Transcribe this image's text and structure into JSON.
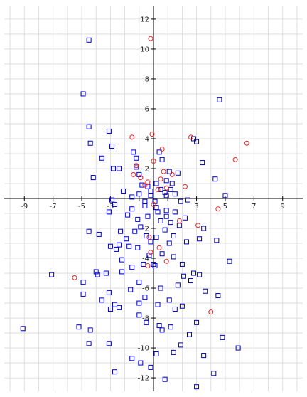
{
  "chart_data": {
    "type": "scatter",
    "title": "",
    "xlabel": "",
    "ylabel": "",
    "xlim": [
      -10.4,
      10.4
    ],
    "ylim": [
      -12.9,
      12.9
    ],
    "grid": true,
    "x_ticks": [
      -9,
      -7,
      -5,
      -3,
      -1,
      1,
      3,
      5,
      7,
      9
    ],
    "x_tick_labels": [
      "-9",
      "-7",
      "-5",
      "-3",
      "",
      "",
      "3",
      "5",
      "7",
      "9"
    ],
    "y_ticks": [
      -12,
      -10,
      -8,
      -6,
      -4,
      -2,
      2,
      4,
      6,
      8,
      10,
      12
    ],
    "y_tick_labels": [
      "-12",
      "-10",
      "-8",
      "-6",
      "-4",
      "-2",
      "2",
      "4",
      "6",
      "8",
      "10",
      "12"
    ],
    "colors": {
      "squares": "#0000cc",
      "circles": "#ee2222",
      "grid": "#d9d9d9",
      "axis": "#000000"
    },
    "series": [
      {
        "marker": "square",
        "color": "#0000cc",
        "points": [
          [
            -4.5,
            10.6
          ],
          [
            -4.9,
            7.0
          ],
          [
            4.6,
            6.6
          ],
          [
            -4.5,
            4.8
          ],
          [
            -3.1,
            4.5
          ],
          [
            -4.4,
            3.7
          ],
          [
            -2.9,
            3.5
          ],
          [
            -1.4,
            3.1
          ],
          [
            0.4,
            3.1
          ],
          [
            2.8,
            4.0
          ],
          [
            3.0,
            3.8
          ],
          [
            -3.6,
            2.7
          ],
          [
            -1.2,
            2.7
          ],
          [
            0.6,
            2.6
          ],
          [
            3.4,
            2.4
          ],
          [
            -2.8,
            2.0
          ],
          [
            -2.4,
            2.0
          ],
          [
            -1.2,
            2.1
          ],
          [
            1.1,
            1.8
          ],
          [
            1.7,
            1.7
          ],
          [
            -4.2,
            1.4
          ],
          [
            4.3,
            1.3
          ],
          [
            -1.0,
            1.6
          ],
          [
            0.2,
            1.0
          ],
          [
            -0.4,
            0.8
          ],
          [
            0.8,
            0.4
          ],
          [
            1.2,
            0.6
          ],
          [
            -2.1,
            0.5
          ],
          [
            -1.0,
            0.3
          ],
          [
            -0.2,
            0.2
          ],
          [
            0.9,
            0.2
          ],
          [
            1.5,
            0.3
          ],
          [
            5.0,
            0.2
          ],
          [
            -2.9,
            -0.1
          ],
          [
            -2.7,
            -0.4
          ],
          [
            -1.5,
            -0.7
          ],
          [
            -0.6,
            -0.5
          ],
          [
            0.2,
            -0.6
          ],
          [
            0.9,
            -0.8
          ],
          [
            1.9,
            -0.2
          ],
          [
            2.4,
            -0.1
          ],
          [
            -3.1,
            -0.9
          ],
          [
            -1.8,
            -1.1
          ],
          [
            -1.1,
            -1.4
          ],
          [
            -0.4,
            -1.2
          ],
          [
            0.5,
            -1.5
          ],
          [
            1.2,
            -1.6
          ],
          [
            1.8,
            -1.8
          ],
          [
            3.5,
            -2.0
          ],
          [
            -4.5,
            -2.2
          ],
          [
            -3.8,
            -2.4
          ],
          [
            -2.3,
            -2.2
          ],
          [
            -1.3,
            -2.2
          ],
          [
            -0.5,
            -2.5
          ],
          [
            0.2,
            -2.6
          ],
          [
            1.4,
            -2.5
          ],
          [
            2.3,
            -2.9
          ],
          [
            3.2,
            -2.7
          ],
          [
            4.4,
            -2.8
          ],
          [
            -3.0,
            -3.2
          ],
          [
            -2.4,
            -3.1
          ],
          [
            -1.7,
            -3.2
          ],
          [
            -1.1,
            -3.3
          ],
          [
            -0.3,
            -3.8
          ],
          [
            0.6,
            -3.7
          ],
          [
            1.4,
            -3.9
          ],
          [
            2.0,
            -4.4
          ],
          [
            5.3,
            -4.2
          ],
          [
            -2.2,
            -4.1
          ],
          [
            -1.5,
            -4.6
          ],
          [
            -0.7,
            -4.4
          ],
          [
            0.1,
            -4.5
          ],
          [
            -4.9,
            -5.6
          ],
          [
            -3.9,
            -5.1
          ],
          [
            -3.3,
            -5.0
          ],
          [
            -2.2,
            -4.9
          ],
          [
            -1.0,
            -5.6
          ],
          [
            0.0,
            -4.4
          ],
          [
            2.1,
            -5.2
          ],
          [
            2.6,
            -5.5
          ],
          [
            2.8,
            -5.0
          ],
          [
            3.2,
            -5.1
          ],
          [
            3.6,
            -6.2
          ],
          [
            -4.9,
            -6.4
          ],
          [
            -3.1,
            -6.3
          ],
          [
            -1.6,
            -6.1
          ],
          [
            -0.6,
            -6.6
          ],
          [
            0.5,
            -6.0
          ],
          [
            1.1,
            -6.8
          ],
          [
            1.7,
            -5.8
          ],
          [
            2.0,
            -7.2
          ],
          [
            4.5,
            -6.5
          ],
          [
            -3.6,
            -6.8
          ],
          [
            -2.7,
            -7.1
          ],
          [
            -1.0,
            -7.0
          ],
          [
            0.3,
            -7.1
          ],
          [
            1.5,
            -7.4
          ],
          [
            -3.0,
            -7.4
          ],
          [
            -2.4,
            -7.3
          ],
          [
            -1.0,
            -7.8
          ],
          [
            0.4,
            -8.5
          ],
          [
            1.2,
            -8.6
          ],
          [
            -5.2,
            -8.6
          ],
          [
            -4.4,
            -8.8
          ],
          [
            -0.5,
            -8.3
          ],
          [
            0.6,
            -8.8
          ],
          [
            2.5,
            -9.1
          ],
          [
            3.0,
            -8.3
          ],
          [
            -9.1,
            -8.7
          ],
          [
            -4.5,
            -9.7
          ],
          [
            -3.1,
            -9.7
          ],
          [
            1.9,
            -9.8
          ],
          [
            4.8,
            -9.3
          ],
          [
            5.9,
            -10.0
          ],
          [
            -1.5,
            -10.7
          ],
          [
            0.2,
            -10.4
          ],
          [
            1.4,
            -10.3
          ],
          [
            3.5,
            -10.5
          ],
          [
            -0.9,
            -11.0
          ],
          [
            -2.7,
            -11.6
          ],
          [
            -0.2,
            -11.3
          ],
          [
            4.2,
            -11.7
          ],
          [
            0.8,
            -12.1
          ],
          [
            3.0,
            -12.6
          ],
          [
            -7.1,
            -5.1
          ],
          [
            -4.0,
            -4.9
          ],
          [
            0.5,
            0.6
          ],
          [
            -0.2,
            0.5
          ],
          [
            0.1,
            -0.2
          ],
          [
            0.9,
            1.2
          ],
          [
            -0.8,
            0.9
          ],
          [
            1.3,
            1.0
          ],
          [
            -1.5,
            0.1
          ],
          [
            -0.6,
            -0.2
          ],
          [
            0.3,
            -0.9
          ],
          [
            1.5,
            -0.9
          ],
          [
            -0.9,
            -1.9
          ],
          [
            0.8,
            -2.1
          ],
          [
            -0.2,
            -2.9
          ],
          [
            1.1,
            -3.0
          ],
          [
            -1.9,
            -2.7
          ],
          [
            -2.6,
            -3.4
          ],
          [
            0.9,
            -1.2
          ],
          [
            2.2,
            -1.3
          ]
        ]
      },
      {
        "marker": "circle",
        "color": "#ee2222",
        "points": [
          [
            -0.2,
            10.7
          ],
          [
            -0.1,
            4.3
          ],
          [
            -1.5,
            4.1
          ],
          [
            2.6,
            4.1
          ],
          [
            6.5,
            3.7
          ],
          [
            0.6,
            3.3
          ],
          [
            5.7,
            2.6
          ],
          [
            0.0,
            2.5
          ],
          [
            -1.2,
            2.2
          ],
          [
            0.7,
            1.8
          ],
          [
            1.3,
            1.6
          ],
          [
            -1.4,
            1.6
          ],
          [
            -0.9,
            1.4
          ],
          [
            0.5,
            1.3
          ],
          [
            -0.4,
            1.1
          ],
          [
            0.3,
            0.6
          ],
          [
            0.9,
            0.7
          ],
          [
            2.2,
            0.8
          ],
          [
            -0.6,
            0.9
          ],
          [
            4.5,
            -0.7
          ],
          [
            3.1,
            -1.8
          ],
          [
            1.8,
            -1.5
          ],
          [
            -0.3,
            -2.6
          ],
          [
            0.4,
            -3.3
          ],
          [
            -0.2,
            -3.6
          ],
          [
            0.9,
            -4.2
          ],
          [
            -0.4,
            -4.5
          ],
          [
            -5.5,
            -5.3
          ],
          [
            4.0,
            -7.6
          ],
          [
            0.0,
            -0.4
          ]
        ]
      }
    ]
  }
}
